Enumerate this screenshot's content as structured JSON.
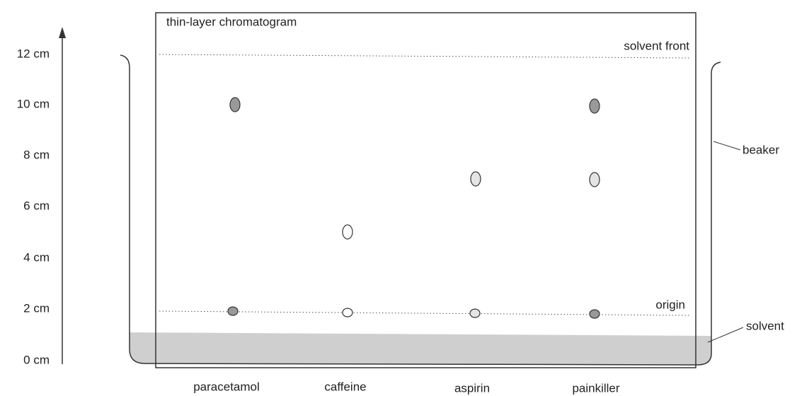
{
  "title": "thin-layer chromatogram",
  "scale": {
    "labels": [
      "12 cm",
      "10 cm",
      "8 cm",
      "6 cm",
      "4 cm",
      "2 cm",
      "0 cm"
    ]
  },
  "labels": {
    "solvent_front": "solvent front",
    "origin": "origin",
    "beaker": "beaker",
    "solvent": "solvent"
  },
  "samples": [
    "paracetamol",
    "caffeine",
    "aspirin",
    "painkiller"
  ]
}
